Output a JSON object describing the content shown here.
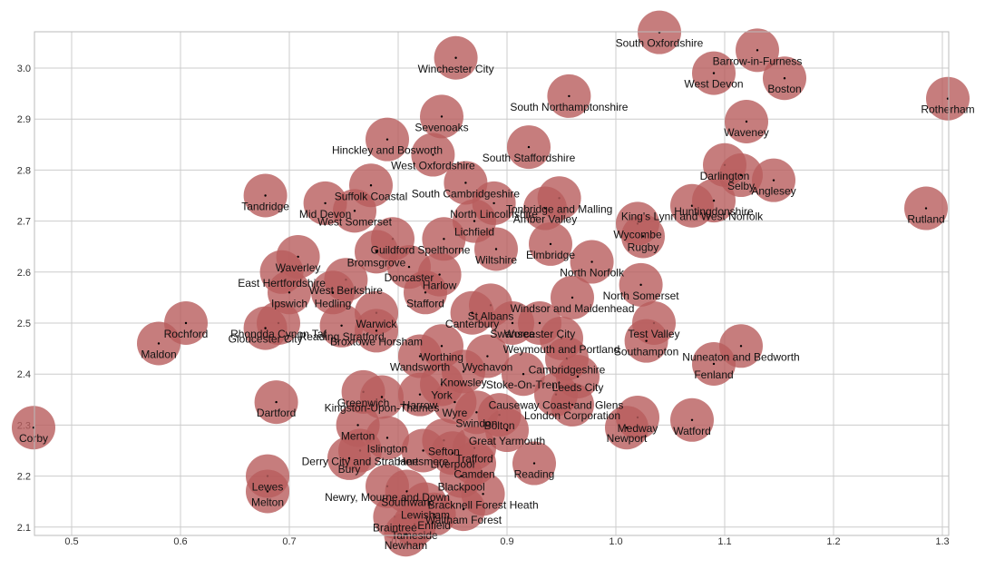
{
  "chart_data": {
    "type": "scatter",
    "title": "",
    "xlabel": "",
    "ylabel": "",
    "xlim": [
      0.465,
      1.305
    ],
    "ylim": [
      2.095,
      3.07
    ],
    "x_ticks": [
      "0.5",
      "0.6",
      "0.7",
      "0.8",
      "0.9",
      "1.0",
      "1.1",
      "1.2",
      "1.3"
    ],
    "x_tick_values": [
      0.5,
      0.6,
      0.7,
      0.8,
      0.9,
      1.0,
      1.1,
      1.2,
      1.3
    ],
    "y_ticks": [
      "2.1",
      "2.2",
      "2.3",
      "2.4",
      "2.5",
      "2.6",
      "2.7",
      "2.8",
      "2.9",
      "3.0"
    ],
    "y_tick_values": [
      2.1,
      2.2,
      2.3,
      2.4,
      2.5,
      2.6,
      2.7,
      2.8,
      2.9,
      3.0
    ],
    "grid": true,
    "bubble_color": "#b85c5c",
    "bubble_opacity": 0.8,
    "points": [
      {
        "label": "South Oxfordshire",
        "x": 1.04,
        "y": 3.07
      },
      {
        "label": "Barrow-in-Furness",
        "x": 1.13,
        "y": 3.035
      },
      {
        "label": "Winchester City",
        "x": 0.853,
        "y": 3.02
      },
      {
        "label": "West Devon",
        "x": 1.09,
        "y": 2.99
      },
      {
        "label": "Boston",
        "x": 1.155,
        "y": 2.98
      },
      {
        "label": "South Northamptonshire",
        "x": 0.957,
        "y": 2.945
      },
      {
        "label": "Rotherham",
        "x": 1.305,
        "y": 2.94
      },
      {
        "label": "Sevenoaks",
        "x": 0.84,
        "y": 2.905
      },
      {
        "label": "Waveney",
        "x": 1.12,
        "y": 2.895
      },
      {
        "label": "Hinckley and Bosworth",
        "x": 0.79,
        "y": 2.86
      },
      {
        "label": "South Staffordshire",
        "x": 0.92,
        "y": 2.845
      },
      {
        "label": "West Oxfordshire",
        "x": 0.832,
        "y": 2.83
      },
      {
        "label": "Darlington",
        "x": 1.1,
        "y": 2.81
      },
      {
        "label": "Selby",
        "x": 1.115,
        "y": 2.79
      },
      {
        "label": "Anglesey",
        "x": 1.145,
        "y": 2.78
      },
      {
        "label": "Suffolk Coastal",
        "x": 0.775,
        "y": 2.77
      },
      {
        "label": "Tandridge",
        "x": 0.678,
        "y": 2.75
      },
      {
        "label": "Rutland",
        "x": 1.285,
        "y": 2.725
      },
      {
        "label": "South Cambridgeshire",
        "x": 0.862,
        "y": 2.775
      },
      {
        "label": "Mid Devon",
        "x": 0.733,
        "y": 2.735
      },
      {
        "label": "West Somerset",
        "x": 0.76,
        "y": 2.72
      },
      {
        "label": "North Lincolnshire",
        "x": 0.888,
        "y": 2.735
      },
      {
        "label": "Tonbridge and Malling",
        "x": 0.948,
        "y": 2.745
      },
      {
        "label": "Amber Valley",
        "x": 0.935,
        "y": 2.725
      },
      {
        "label": "King's Lynn and West Norfolk",
        "x": 1.07,
        "y": 2.73
      },
      {
        "label": "Huntingdonshire",
        "x": 1.09,
        "y": 2.74
      },
      {
        "label": "Wycombe",
        "x": 1.02,
        "y": 2.695
      },
      {
        "label": "Lichfield",
        "x": 0.87,
        "y": 2.7
      },
      {
        "label": "Guildford",
        "x": 0.795,
        "y": 2.665
      },
      {
        "label": "Spelthorne",
        "x": 0.842,
        "y": 2.665
      },
      {
        "label": "Rugby",
        "x": 1.025,
        "y": 2.67
      },
      {
        "label": "Elmbridge",
        "x": 0.94,
        "y": 2.655
      },
      {
        "label": "Wiltshire",
        "x": 0.89,
        "y": 2.645
      },
      {
        "label": "Bromsgrove",
        "x": 0.78,
        "y": 2.64
      },
      {
        "label": "Waverley",
        "x": 0.708,
        "y": 2.63
      },
      {
        "label": "North Norfolk",
        "x": 0.978,
        "y": 2.62
      },
      {
        "label": "Doncaster",
        "x": 0.81,
        "y": 2.61
      },
      {
        "label": "Harlow",
        "x": 0.838,
        "y": 2.595
      },
      {
        "label": "East Hertfordshire",
        "x": 0.693,
        "y": 2.6
      },
      {
        "label": "West Berkshire",
        "x": 0.752,
        "y": 2.585
      },
      {
        "label": "North Somerset",
        "x": 1.023,
        "y": 2.575
      },
      {
        "label": "Ipswich",
        "x": 0.7,
        "y": 2.56
      },
      {
        "label": "Stafford",
        "x": 0.825,
        "y": 2.56
      },
      {
        "label": "Hedling",
        "x": 0.74,
        "y": 2.56
      },
      {
        "label": "Windsor and Maidenhead",
        "x": 0.96,
        "y": 2.55
      },
      {
        "label": "St Albans",
        "x": 0.885,
        "y": 2.535
      },
      {
        "label": "Canterbury",
        "x": 0.868,
        "y": 2.52
      },
      {
        "label": "Warwick",
        "x": 0.78,
        "y": 2.52
      },
      {
        "label": "Test Valley",
        "x": 1.035,
        "y": 2.5
      },
      {
        "label": "Rhondda Cynon Taf",
        "x": 0.69,
        "y": 2.5
      },
      {
        "label": "Rochford",
        "x": 0.605,
        "y": 2.5
      },
      {
        "label": "Worcester City",
        "x": 0.93,
        "y": 2.5
      },
      {
        "label": "Swansea",
        "x": 0.905,
        "y": 2.5
      },
      {
        "label": "Reading Stratford",
        "x": 0.748,
        "y": 2.495
      },
      {
        "label": "Gloucester City",
        "x": 0.678,
        "y": 2.49
      },
      {
        "label": "Broxtowe Horsham",
        "x": 0.78,
        "y": 2.485
      },
      {
        "label": "Weymouth and Portland",
        "x": 0.95,
        "y": 2.47
      },
      {
        "label": "Southampton",
        "x": 1.028,
        "y": 2.465
      },
      {
        "label": "Worthing",
        "x": 0.84,
        "y": 2.455
      },
      {
        "label": "Maldon",
        "x": 0.58,
        "y": 2.46
      },
      {
        "label": "Nuneaton and Bedworth",
        "x": 1.115,
        "y": 2.455
      },
      {
        "label": "Wandsworth",
        "x": 0.82,
        "y": 2.435
      },
      {
        "label": "Wychavon",
        "x": 0.882,
        "y": 2.435
      },
      {
        "label": "Cambridgeshire",
        "x": 0.955,
        "y": 2.43
      },
      {
        "label": "Fenland",
        "x": 1.09,
        "y": 2.42
      },
      {
        "label": "Knowsley",
        "x": 0.86,
        "y": 2.405
      },
      {
        "label": "Stoke-On-Trent",
        "x": 0.915,
        "y": 2.4
      },
      {
        "label": "Leeds City",
        "x": 0.965,
        "y": 2.395
      },
      {
        "label": "York",
        "x": 0.84,
        "y": 2.38
      },
      {
        "label": "Greenwich",
        "x": 0.768,
        "y": 2.365
      },
      {
        "label": "Kingston-Upon-Thames",
        "x": 0.785,
        "y": 2.355
      },
      {
        "label": "Causeway Coast and Glens",
        "x": 0.945,
        "y": 2.36
      },
      {
        "label": "Harrow",
        "x": 0.82,
        "y": 2.36
      },
      {
        "label": "Dartford",
        "x": 0.688,
        "y": 2.345
      },
      {
        "label": "Wyre",
        "x": 0.852,
        "y": 2.345
      },
      {
        "label": "London Corporation",
        "x": 0.96,
        "y": 2.34
      },
      {
        "label": "Swindon",
        "x": 0.872,
        "y": 2.325
      },
      {
        "label": "Bolton",
        "x": 0.893,
        "y": 2.32
      },
      {
        "label": "Merton",
        "x": 0.763,
        "y": 2.3
      },
      {
        "label": "Corby",
        "x": 0.465,
        "y": 2.295
      },
      {
        "label": "Medway",
        "x": 1.02,
        "y": 2.315
      },
      {
        "label": "Watford",
        "x": 1.07,
        "y": 2.31
      },
      {
        "label": "Newport",
        "x": 1.01,
        "y": 2.295
      },
      {
        "label": "Great Yarmouth",
        "x": 0.9,
        "y": 2.29
      },
      {
        "label": "Islington",
        "x": 0.79,
        "y": 2.275
      },
      {
        "label": "Sefton",
        "x": 0.842,
        "y": 2.27
      },
      {
        "label": "Trafford",
        "x": 0.87,
        "y": 2.255
      },
      {
        "label": "Hertsmere",
        "x": 0.823,
        "y": 2.25
      },
      {
        "label": "Derry City and Strabane",
        "x": 0.765,
        "y": 2.25
      },
      {
        "label": "Liverpool",
        "x": 0.85,
        "y": 2.245
      },
      {
        "label": "Bury",
        "x": 0.755,
        "y": 2.235
      },
      {
        "label": "Camden",
        "x": 0.87,
        "y": 2.225
      },
      {
        "label": "Reading",
        "x": 0.925,
        "y": 2.225
      },
      {
        "label": "Lewes",
        "x": 0.68,
        "y": 2.2
      },
      {
        "label": "Blackpool",
        "x": 0.858,
        "y": 2.2
      },
      {
        "label": "Newry, Mourne and Down",
        "x": 0.79,
        "y": 2.18
      },
      {
        "label": "Melton",
        "x": 0.68,
        "y": 2.17
      },
      {
        "label": "Southwark",
        "x": 0.808,
        "y": 2.17
      },
      {
        "label": "Bracknell Forest Heath",
        "x": 0.878,
        "y": 2.165
      },
      {
        "label": "Lewisham",
        "x": 0.825,
        "y": 2.145
      },
      {
        "label": "Waltham Forest",
        "x": 0.86,
        "y": 2.135
      },
      {
        "label": "Braintree",
        "x": 0.797,
        "y": 2.12
      },
      {
        "label": "Enfield",
        "x": 0.833,
        "y": 2.125
      },
      {
        "label": "Tameside",
        "x": 0.815,
        "y": 2.105
      },
      {
        "label": "Newham",
        "x": 0.807,
        "y": 2.085
      }
    ]
  }
}
